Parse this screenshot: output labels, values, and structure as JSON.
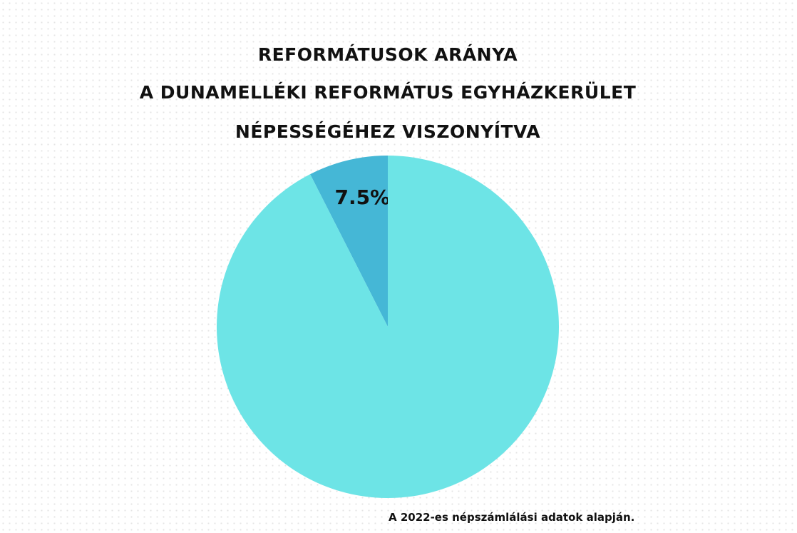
{
  "chart_data": {
    "type": "pie",
    "title_lines": [
      "Reformátusok aránya",
      "a Dunamelléki Református Egyházkerület",
      "népességéhez viszonyítva"
    ],
    "slices": [
      {
        "value": 7.5,
        "label": "7.5%",
        "color": "#45b7d6"
      },
      {
        "value": 92.5,
        "label": "",
        "color": "#6de4e6"
      }
    ],
    "start_angle": "12 o'clock, counterclockwise",
    "legend": "none"
  },
  "source_note": "A 2022-es népszámlálási adatok alapján."
}
